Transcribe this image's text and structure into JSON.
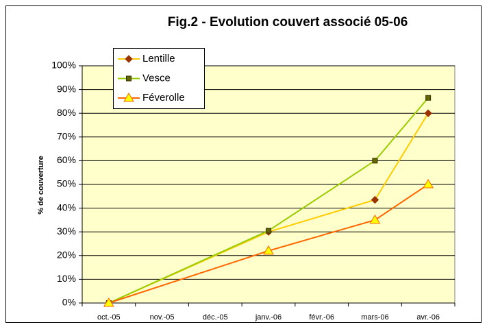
{
  "chart_data": {
    "type": "line",
    "title": "Fig.2 - Evolution couvert associé 05-06",
    "y_label": "% de couverture",
    "categories": [
      "oct.-05",
      "nov.-05",
      "déc.-05",
      "janv.-06",
      "févr.-06",
      "mars-06",
      "avr.-06"
    ],
    "series": [
      {
        "name": "Lentille",
        "color": "#ffcc00",
        "marker": "diamond",
        "marker_color": "#993300",
        "marker_edge": "#993300",
        "x": [
          "oct.-05",
          "janv.-06",
          "mars-06",
          "avr.-06"
        ],
        "values": [
          0,
          30,
          43.5,
          80
        ]
      },
      {
        "name": "Vesce",
        "color": "#99cc00",
        "marker": "square",
        "marker_color": "#666600",
        "marker_edge": "#333300",
        "x": [
          "oct.-05",
          "janv.-06",
          "mars-06",
          "avr.-06"
        ],
        "values": [
          0,
          30.5,
          60,
          86.5
        ]
      },
      {
        "name": "Féverolle",
        "color": "#ff6600",
        "marker": "triangle",
        "marker_color": "#ffff00",
        "marker_edge": "#ff6600",
        "x": [
          "oct.-05",
          "janv.-06",
          "mars-06",
          "avr.-06"
        ],
        "values": [
          0,
          22,
          35,
          50
        ]
      }
    ],
    "ylim": [
      0,
      100
    ],
    "yticks": [
      {
        "value": 0,
        "label": "0%"
      },
      {
        "value": 10,
        "label": "10%"
      },
      {
        "value": 20,
        "label": "20%"
      },
      {
        "value": 30,
        "label": "30%"
      },
      {
        "value": 40,
        "label": "40%"
      },
      {
        "value": 50,
        "label": "50%"
      },
      {
        "value": 60,
        "label": "60%"
      },
      {
        "value": 70,
        "label": "70%"
      },
      {
        "value": 80,
        "label": "80%"
      },
      {
        "value": 90,
        "label": "90%"
      },
      {
        "value": 100,
        "label": "100%"
      }
    ],
    "grid": true,
    "plot_background": "#ffffcc",
    "legend": "upper left"
  }
}
